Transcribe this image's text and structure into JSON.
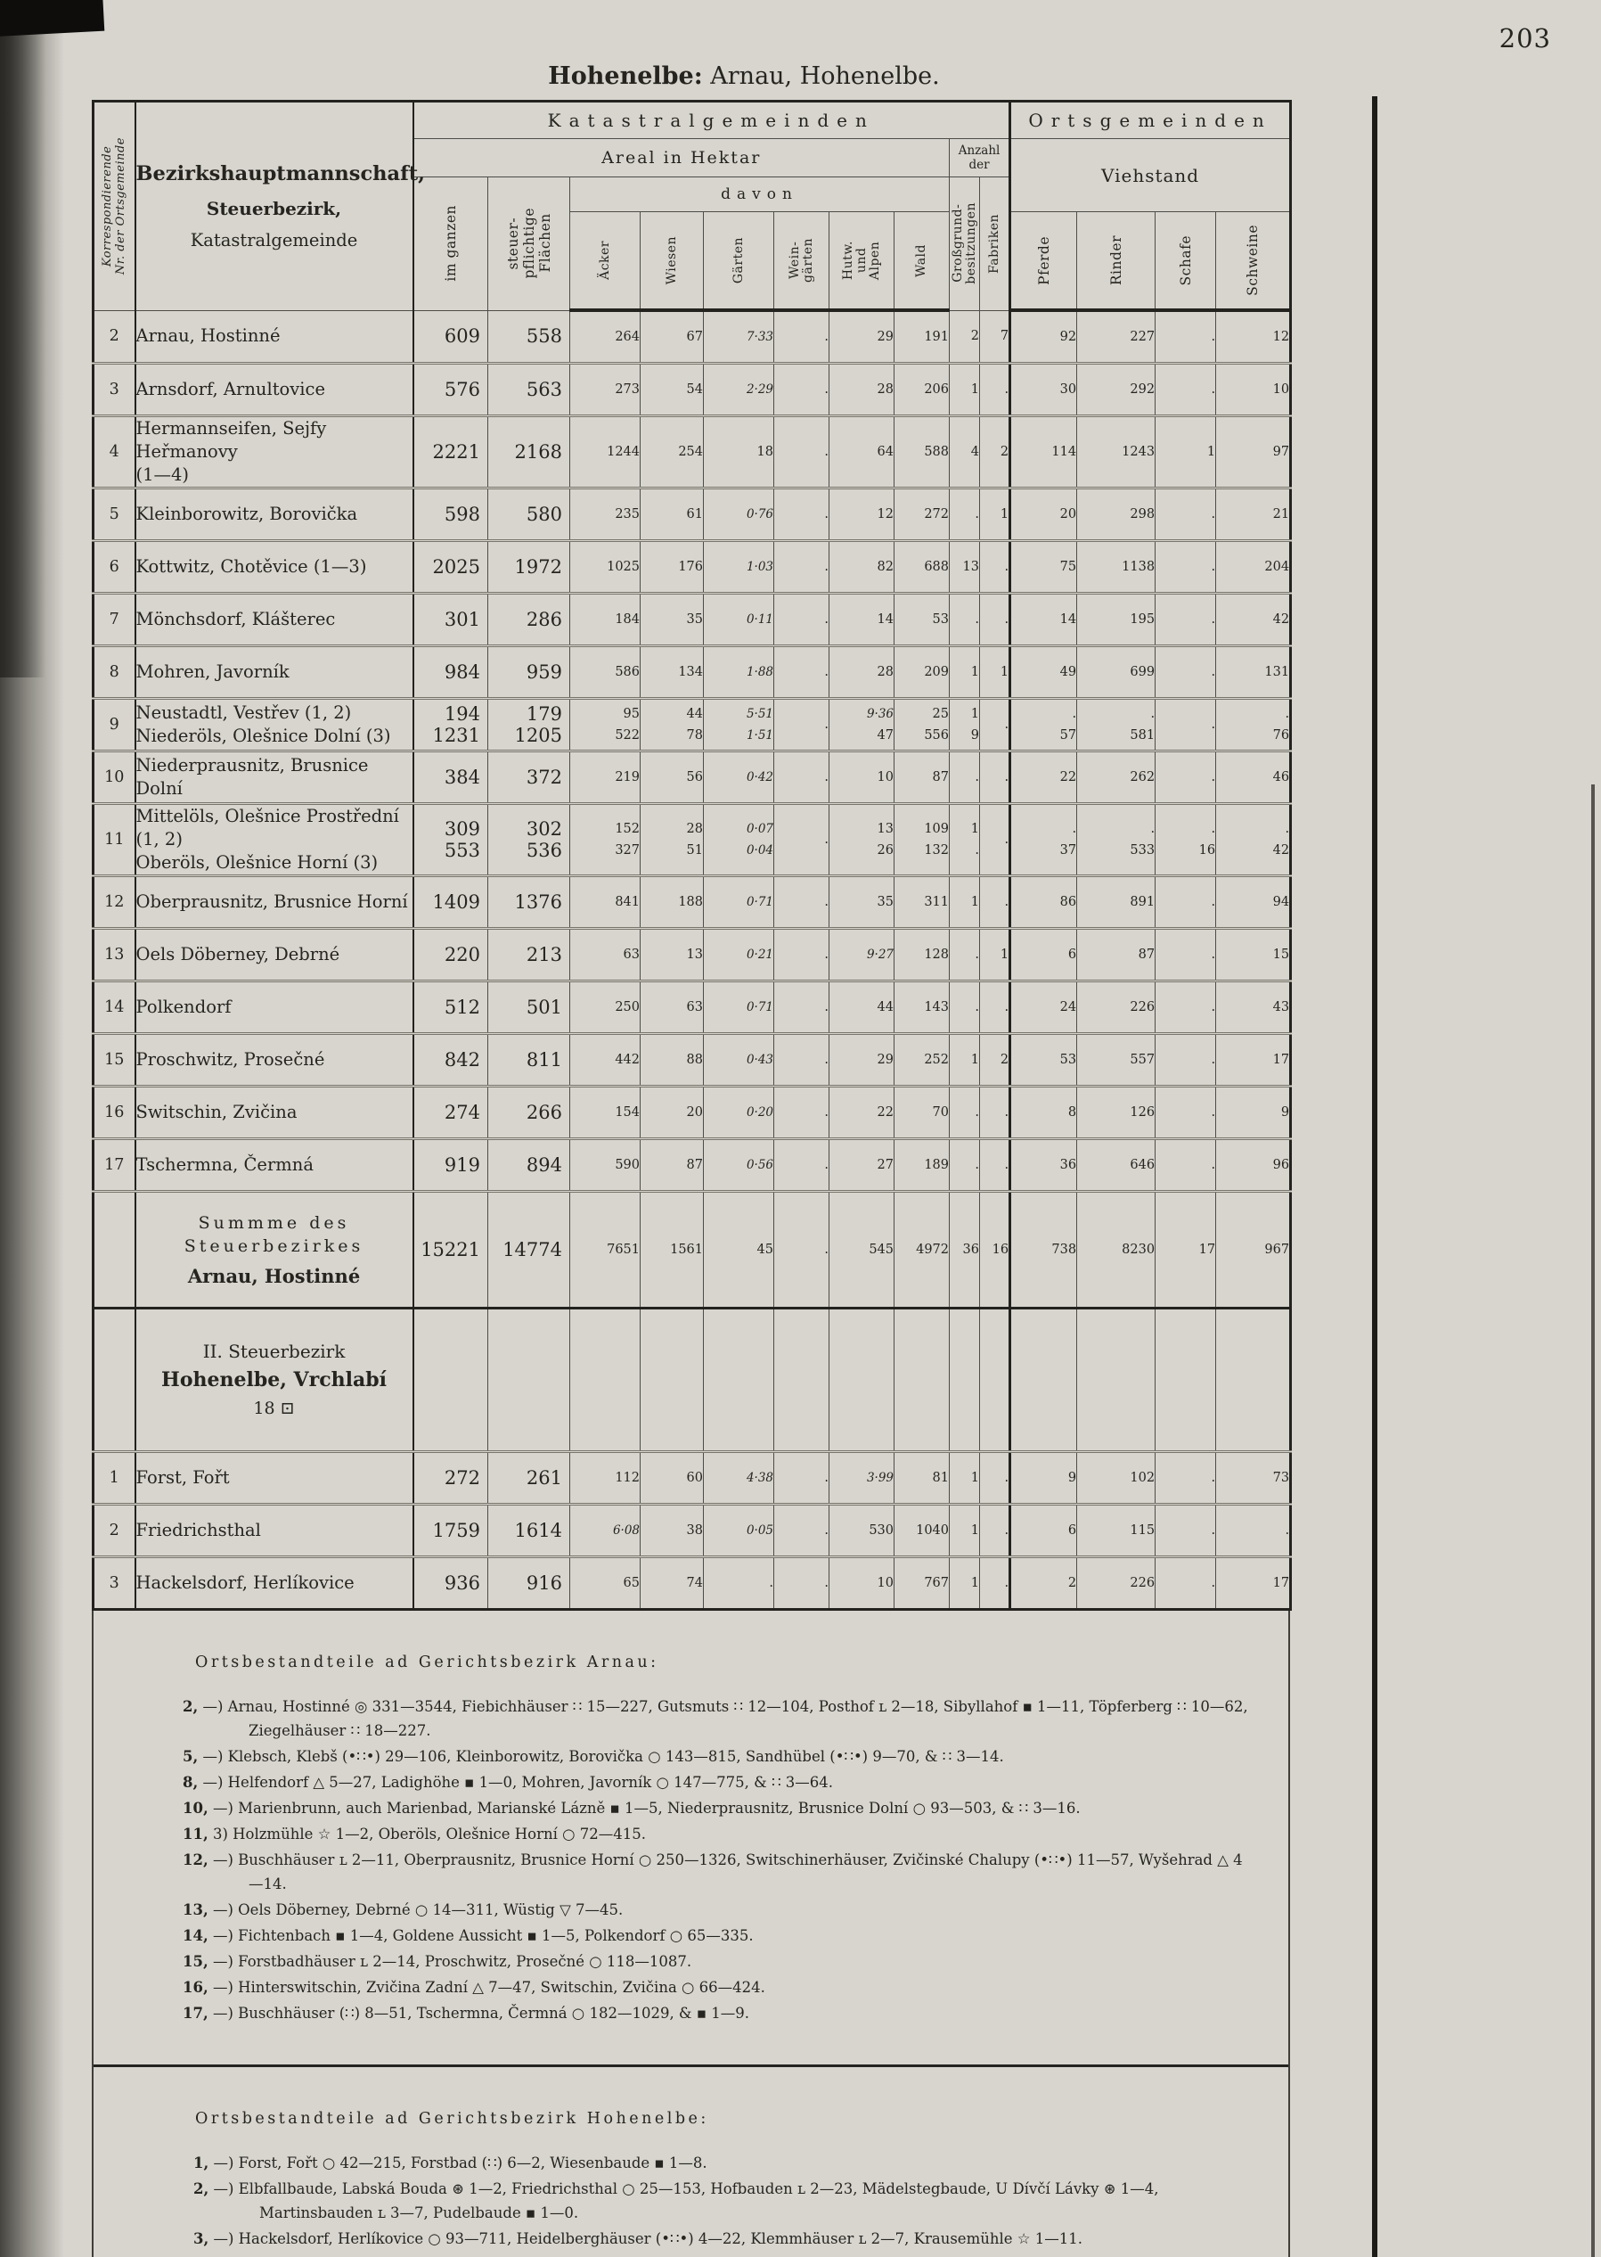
{
  "page": {
    "number": "203",
    "title_bold": "Hohenelbe:",
    "title_rest": " Arnau, Hohenelbe."
  },
  "colors": {
    "paper": "#d7d5ce",
    "ink": "#26241f"
  },
  "table": {
    "corner_lines": [
      "Korrespondierende",
      "Nr. der Ortsgemeinde"
    ],
    "name_header_l1": "Bezirkshauptmannschaft,",
    "name_header_l2": "Steuerbezirk,",
    "name_header_l3": "Katastralgemeinde",
    "group_katastral": "Katastralgemeinden",
    "group_orts": "Ortsgemeinden",
    "areal": "Areal in Hektar",
    "davon": "davon",
    "anzahl_der": "Anzahl der",
    "viehstand": "Viehstand",
    "cols": {
      "im_ganzen": [
        "im ganzen"
      ],
      "steuerpfl": [
        "steuer-",
        "pflichtige",
        "Flächen"
      ],
      "acker": [
        "Äcker"
      ],
      "wiesen": [
        "Wiesen"
      ],
      "garten": [
        "Gärten"
      ],
      "weingarten": [
        "Wein-",
        "gärten"
      ],
      "hutw": [
        "Hutw.",
        "und",
        "Alpen"
      ],
      "wald": [
        "Wald"
      ],
      "grossgrund": [
        "Großgrund-",
        "besitzungen"
      ],
      "fabriken": [
        "Fabriken"
      ],
      "pferde": [
        "Pferde"
      ],
      "rinder": [
        "Rinder"
      ],
      "schafe": [
        "Schafe"
      ],
      "schweine": [
        "Schweine"
      ]
    },
    "rows": [
      {
        "nr": "2",
        "name": [
          "Arnau, Hostinné"
        ],
        "values": [
          [
            "609"
          ],
          [
            "558"
          ],
          [
            "264"
          ],
          [
            "67"
          ],
          [
            "7·33"
          ],
          [
            "."
          ],
          [
            "29"
          ],
          [
            "191"
          ],
          [
            "2"
          ],
          [
            "7"
          ],
          [
            "92"
          ],
          [
            "227"
          ],
          [
            "."
          ],
          [
            "12"
          ]
        ]
      },
      {
        "nr": "3",
        "name": [
          "Arnsdorf, Arnultovice"
        ],
        "values": [
          [
            "576"
          ],
          [
            "563"
          ],
          [
            "273"
          ],
          [
            "54"
          ],
          [
            "2·29"
          ],
          [
            "."
          ],
          [
            "28"
          ],
          [
            "206"
          ],
          [
            "1"
          ],
          [
            "."
          ],
          [
            "30"
          ],
          [
            "292"
          ],
          [
            "."
          ],
          [
            "10"
          ]
        ]
      },
      {
        "nr": "4",
        "name": [
          "Hermannseifen, Sejfy Heřmanovy",
          "(1—4)"
        ],
        "values": [
          [
            "2221"
          ],
          [
            "2168"
          ],
          [
            "1244"
          ],
          [
            "254"
          ],
          [
            "18"
          ],
          [
            "."
          ],
          [
            "64"
          ],
          [
            "588"
          ],
          [
            "4"
          ],
          [
            "2"
          ],
          [
            "114"
          ],
          [
            "1243"
          ],
          [
            "1"
          ],
          [
            "97"
          ]
        ]
      },
      {
        "nr": "5",
        "name": [
          "Kleinborowitz, Borovička"
        ],
        "values": [
          [
            "598"
          ],
          [
            "580"
          ],
          [
            "235"
          ],
          [
            "61"
          ],
          [
            "0·76"
          ],
          [
            "."
          ],
          [
            "12"
          ],
          [
            "272"
          ],
          [
            "."
          ],
          [
            "1"
          ],
          [
            "20"
          ],
          [
            "298"
          ],
          [
            "."
          ],
          [
            "21"
          ]
        ]
      },
      {
        "nr": "6",
        "name": [
          "Kottwitz, Chotěvice (1—3)"
        ],
        "values": [
          [
            "2025"
          ],
          [
            "1972"
          ],
          [
            "1025"
          ],
          [
            "176"
          ],
          [
            "1·03"
          ],
          [
            "."
          ],
          [
            "82"
          ],
          [
            "688"
          ],
          [
            "13"
          ],
          [
            "."
          ],
          [
            "75"
          ],
          [
            "1138"
          ],
          [
            "."
          ],
          [
            "204"
          ]
        ]
      },
      {
        "nr": "7",
        "name": [
          "Mönchsdorf, Klášterec"
        ],
        "values": [
          [
            "301"
          ],
          [
            "286"
          ],
          [
            "184"
          ],
          [
            "35"
          ],
          [
            "0·11"
          ],
          [
            "."
          ],
          [
            "14"
          ],
          [
            "53"
          ],
          [
            "."
          ],
          [
            "."
          ],
          [
            "14"
          ],
          [
            "195"
          ],
          [
            "."
          ],
          [
            "42"
          ]
        ]
      },
      {
        "nr": "8",
        "name": [
          "Mohren, Javorník"
        ],
        "values": [
          [
            "984"
          ],
          [
            "959"
          ],
          [
            "586"
          ],
          [
            "134"
          ],
          [
            "1·88"
          ],
          [
            "."
          ],
          [
            "28"
          ],
          [
            "209"
          ],
          [
            "1"
          ],
          [
            "1"
          ],
          [
            "49"
          ],
          [
            "699"
          ],
          [
            "."
          ],
          [
            "131"
          ]
        ]
      },
      {
        "nr": "9",
        "name": [
          "Neustadtl, Vestřev (1, 2)",
          "Niederöls, Olešnice Dolní (3)"
        ],
        "values": [
          [
            "194",
            "1231"
          ],
          [
            "179",
            "1205"
          ],
          [
            "95",
            "522"
          ],
          [
            "44",
            "78"
          ],
          [
            "5·51",
            "1·51"
          ],
          [
            "."
          ],
          [
            "9·36",
            "47"
          ],
          [
            "25",
            "556"
          ],
          [
            "1",
            "9"
          ],
          [
            "."
          ],
          [
            ".",
            "57"
          ],
          [
            ".",
            "581"
          ],
          [
            "."
          ],
          [
            ".",
            "76"
          ]
        ]
      },
      {
        "nr": "10",
        "name": [
          "Niederprausnitz, Brusnice Dolní"
        ],
        "values": [
          [
            "384"
          ],
          [
            "372"
          ],
          [
            "219"
          ],
          [
            "56"
          ],
          [
            "0·42"
          ],
          [
            "."
          ],
          [
            "10"
          ],
          [
            "87"
          ],
          [
            "."
          ],
          [
            "."
          ],
          [
            "22"
          ],
          [
            "262"
          ],
          [
            "."
          ],
          [
            "46"
          ]
        ]
      },
      {
        "nr": "11",
        "name": [
          "Mittelöls, Olešnice Prostřední (1, 2)",
          "Oberöls, Olešnice Horní (3)"
        ],
        "values": [
          [
            "309",
            "553"
          ],
          [
            "302",
            "536"
          ],
          [
            "152",
            "327"
          ],
          [
            "28",
            "51"
          ],
          [
            "0·07",
            "0·04"
          ],
          [
            "."
          ],
          [
            "13",
            "26"
          ],
          [
            "109",
            "132"
          ],
          [
            "1",
            "."
          ],
          [
            "."
          ],
          [
            ".",
            "37"
          ],
          [
            ".",
            "533"
          ],
          [
            ".",
            "16"
          ],
          [
            ".",
            "42"
          ]
        ]
      },
      {
        "nr": "12",
        "name": [
          "Oberprausnitz, Brusnice Horní"
        ],
        "values": [
          [
            "1409"
          ],
          [
            "1376"
          ],
          [
            "841"
          ],
          [
            "188"
          ],
          [
            "0·71"
          ],
          [
            "."
          ],
          [
            "35"
          ],
          [
            "311"
          ],
          [
            "1"
          ],
          [
            "."
          ],
          [
            "86"
          ],
          [
            "891"
          ],
          [
            "."
          ],
          [
            "94"
          ]
        ]
      },
      {
        "nr": "13",
        "name": [
          "Oels Döberney, Debrné"
        ],
        "values": [
          [
            "220"
          ],
          [
            "213"
          ],
          [
            "63"
          ],
          [
            "13"
          ],
          [
            "0·21"
          ],
          [
            "."
          ],
          [
            "9·27"
          ],
          [
            "128"
          ],
          [
            "."
          ],
          [
            "1"
          ],
          [
            "6"
          ],
          [
            "87"
          ],
          [
            "."
          ],
          [
            "15"
          ]
        ]
      },
      {
        "nr": "14",
        "name": [
          "Polkendorf"
        ],
        "values": [
          [
            "512"
          ],
          [
            "501"
          ],
          [
            "250"
          ],
          [
            "63"
          ],
          [
            "0·71"
          ],
          [
            "."
          ],
          [
            "44"
          ],
          [
            "143"
          ],
          [
            "."
          ],
          [
            "."
          ],
          [
            "24"
          ],
          [
            "226"
          ],
          [
            "."
          ],
          [
            "43"
          ]
        ]
      },
      {
        "nr": "15",
        "name": [
          "Proschwitz, Prosečné"
        ],
        "values": [
          [
            "842"
          ],
          [
            "811"
          ],
          [
            "442"
          ],
          [
            "88"
          ],
          [
            "0·43"
          ],
          [
            "."
          ],
          [
            "29"
          ],
          [
            "252"
          ],
          [
            "1"
          ],
          [
            "2"
          ],
          [
            "53"
          ],
          [
            "557"
          ],
          [
            "."
          ],
          [
            "17"
          ]
        ]
      },
      {
        "nr": "16",
        "name": [
          "Switschin, Zvičina"
        ],
        "values": [
          [
            "274"
          ],
          [
            "266"
          ],
          [
            "154"
          ],
          [
            "20"
          ],
          [
            "0·20"
          ],
          [
            "."
          ],
          [
            "22"
          ],
          [
            "70"
          ],
          [
            "."
          ],
          [
            "."
          ],
          [
            "8"
          ],
          [
            "126"
          ],
          [
            "."
          ],
          [
            "9"
          ]
        ]
      },
      {
        "nr": "17",
        "name": [
          "Tschermna, Čermná"
        ],
        "values": [
          [
            "919"
          ],
          [
            "894"
          ],
          [
            "590"
          ],
          [
            "87"
          ],
          [
            "0·56"
          ],
          [
            "."
          ],
          [
            "27"
          ],
          [
            "189"
          ],
          [
            "."
          ],
          [
            "."
          ],
          [
            "36"
          ],
          [
            "646"
          ],
          [
            "."
          ],
          [
            "96"
          ]
        ]
      },
      {
        "type": "sum",
        "name": [
          "Summme des Steuerbezirkes",
          "Arnau, Hostinné"
        ],
        "values": [
          [
            "15221"
          ],
          [
            "14774"
          ],
          [
            "7651"
          ],
          [
            "1561"
          ],
          [
            "45"
          ],
          [
            "."
          ],
          [
            "545"
          ],
          [
            "4972"
          ],
          [
            "36"
          ],
          [
            "16"
          ],
          [
            "738"
          ],
          [
            "8230"
          ],
          [
            "17"
          ],
          [
            "967"
          ]
        ]
      },
      {
        "type": "section",
        "name": [
          "II. Steuerbezirk",
          "Hohenelbe, Vrchlabí",
          "18 ⊡"
        ],
        "values": []
      },
      {
        "nr": "1",
        "name": [
          "Forst, Fořt"
        ],
        "values": [
          [
            "272"
          ],
          [
            "261"
          ],
          [
            "112"
          ],
          [
            "60"
          ],
          [
            "4·38"
          ],
          [
            "."
          ],
          [
            "3·99"
          ],
          [
            "81"
          ],
          [
            "1"
          ],
          [
            "."
          ],
          [
            "9"
          ],
          [
            "102"
          ],
          [
            "."
          ],
          [
            "73"
          ]
        ]
      },
      {
        "nr": "2",
        "name": [
          "Friedrichsthal"
        ],
        "values": [
          [
            "1759"
          ],
          [
            "1614"
          ],
          [
            "6·08"
          ],
          [
            "38"
          ],
          [
            "0·05"
          ],
          [
            "."
          ],
          [
            "530"
          ],
          [
            "1040"
          ],
          [
            "1"
          ],
          [
            "."
          ],
          [
            "6"
          ],
          [
            "115"
          ],
          [
            "."
          ],
          [
            "."
          ]
        ]
      },
      {
        "nr": "3",
        "name": [
          "Hackelsdorf, Herlíkovice"
        ],
        "values": [
          [
            "936"
          ],
          [
            "916"
          ],
          [
            "65"
          ],
          [
            "74"
          ],
          [
            "."
          ],
          [
            "."
          ],
          [
            "10"
          ],
          [
            "767"
          ],
          [
            "1"
          ],
          [
            "."
          ],
          [
            "2"
          ],
          [
            "226"
          ],
          [
            "."
          ],
          [
            "17"
          ]
        ]
      }
    ]
  },
  "footnotes": {
    "blocks": [
      {
        "heading": "Ortsbestandteile ad Gerichtsbezirk Arnau:",
        "lines": [
          {
            "label": "2,",
            "text": "—) Arnau, Hostinné ◎ 331—3544, Fiebichhäuser ∷ 15—227, Gutsmuts ∷ 12—104, Posthof ʟ 2—18, Sibyllahof ▪ 1—11, Töpferberg ∷ 10—62, Ziegelhäuser ∷ 18—227."
          },
          {
            "label": "5,",
            "text": "—) Klebsch, Klebš (•∷•) 29—106, Kleinborowitz, Borovička ○ 143—815, Sandhübel (•∷•) 9—70, & ∷ 3—14."
          },
          {
            "label": "8,",
            "text": "—) Helfendorf △ 5—27, Ladighöhe ▪ 1—0, Mohren, Javorník ○ 147—775, & ∷ 3—64."
          },
          {
            "label": "10,",
            "text": "—) Marienbrunn, auch Marienbad, Marianské Lázně ▪ 1—5, Niederprausnitz, Brusnice Dolní ○ 93—503, & ∷ 3—16."
          },
          {
            "label": "11,",
            "text": "3) Holzmühle ☆ 1—2, Oberöls, Olešnice Horní ○ 72—415."
          },
          {
            "label": "12,",
            "text": "—) Buschhäuser ʟ 2—11, Oberprausnitz, Brusnice Horní ○ 250—1326, Switschinerhäuser, Zvičinské Chalupy (•∷•) 11—57, Wyšehrad △ 4—14."
          },
          {
            "label": "13,",
            "text": "—) Oels Döberney, Debrné ○ 14—311, Wüstig ▽ 7—45."
          },
          {
            "label": "14,",
            "text": "—) Fichtenbach ▪ 1—4, Goldene Aussicht ▪ 1—5, Polkendorf ○ 65—335."
          },
          {
            "label": "15,",
            "text": "—) Forstbadhäuser ʟ 2—14, Proschwitz, Prosečné ○ 118—1087."
          },
          {
            "label": "16,",
            "text": "—) Hinterswitschin, Zvičina Zadní △ 7—47, Switschin, Zvičina ○ 66—424."
          },
          {
            "label": "17,",
            "text": "—) Buschhäuser (∷) 8—51, Tschermna, Čermná ○ 182—1029, & ▪ 1—9."
          }
        ]
      },
      {
        "heading": "Ortsbestandteile ad Gerichtsbezirk Hohenelbe:",
        "lines": [
          {
            "label": "1,",
            "text": "—) Forst, Fořt ○ 42—215, Forstbad (∷) 6—2, Wiesenbaude ▪ 1—8."
          },
          {
            "label": "2,",
            "text": "—) Elbfallbaude, Labská Bouda ⊛ 1—2, Friedrichsthal ○ 25—153, Hofbauden ʟ 2—23, Mädelstegbaude, U Dívčí Lávky ⊛ 1—4, Martinsbauden ʟ 3—7, Pudelbaude ▪ 1—0."
          },
          {
            "label": "3,",
            "text": "—) Hackelsdorf, Herlíkovice ○ 93—711, Heidelberghäuser (•∷•) 4—22, Klemmhäuser ʟ 2—7, Krausemühle ☆ 1—11."
          }
        ]
      }
    ]
  }
}
